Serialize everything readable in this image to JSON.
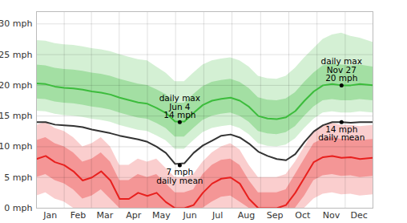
{
  "chart_data": {
    "type": "line",
    "x": [
      0,
      10,
      20,
      30,
      40,
      50,
      60,
      70,
      80,
      90,
      100,
      110,
      120,
      130,
      140,
      150,
      160,
      170,
      180,
      190,
      200,
      210,
      220,
      230,
      240,
      250,
      260,
      270,
      280,
      290,
      300,
      310,
      320,
      330,
      340,
      350,
      364
    ],
    "xlim": [
      0,
      364
    ],
    "xticks": [
      {
        "value": 15,
        "label": "Jan"
      },
      {
        "value": 45,
        "label": "Feb"
      },
      {
        "value": 74,
        "label": "Mar"
      },
      {
        "value": 105,
        "label": "Apr"
      },
      {
        "value": 135,
        "label": "May"
      },
      {
        "value": 166,
        "label": "Jun"
      },
      {
        "value": 196,
        "label": "Jul"
      },
      {
        "value": 227,
        "label": "Aug"
      },
      {
        "value": 258,
        "label": "Sep"
      },
      {
        "value": 288,
        "label": "Oct"
      },
      {
        "value": 319,
        "label": "Nov"
      },
      {
        "value": 349,
        "label": "Dec"
      }
    ],
    "ylim": [
      0,
      32
    ],
    "yticks": [
      {
        "value": 0,
        "label": "0 mph"
      },
      {
        "value": 5,
        "label": "5 mph"
      },
      {
        "value": 10,
        "label": "10 mph"
      },
      {
        "value": 15,
        "label": "15 mph"
      },
      {
        "value": 20,
        "label": "20 mph"
      },
      {
        "value": 25,
        "label": "25 mph"
      },
      {
        "value": 30,
        "label": "30 mph"
      }
    ],
    "grid": true,
    "series": [
      {
        "name": "daily max",
        "color": "#3cbc3c",
        "values": [
          20.3,
          20.2,
          19.8,
          19.6,
          19.5,
          19.3,
          19.0,
          18.8,
          18.5,
          18.0,
          17.6,
          17.2,
          17.0,
          16.3,
          15.5,
          14.1,
          14.1,
          15.5,
          16.8,
          17.5,
          17.8,
          18.0,
          17.5,
          16.5,
          15.0,
          14.6,
          14.5,
          14.8,
          15.8,
          17.5,
          19.0,
          20.0,
          20.2,
          20.0,
          20.0,
          20.2,
          20.0
        ],
        "p90": [
          27.3,
          27.2,
          26.8,
          26.6,
          26.5,
          26.3,
          26.0,
          25.8,
          25.5,
          25.0,
          24.6,
          24.2,
          24.0,
          23.0,
          22.0,
          20.6,
          20.6,
          22.0,
          23.3,
          24.0,
          24.3,
          24.5,
          24.0,
          23.0,
          21.5,
          21.1,
          21.0,
          21.5,
          22.8,
          24.5,
          26.0,
          27.5,
          28.2,
          28.5,
          28.0,
          27.7,
          27.0
        ],
        "p75": [
          23.3,
          23.2,
          22.8,
          22.6,
          22.5,
          22.3,
          22.0,
          21.8,
          21.5,
          21.0,
          20.6,
          20.2,
          20.0,
          19.3,
          18.5,
          17.1,
          17.1,
          18.5,
          19.8,
          20.5,
          20.8,
          21.0,
          20.5,
          19.5,
          18.0,
          17.6,
          17.5,
          17.8,
          18.8,
          20.5,
          22.0,
          23.2,
          23.5,
          23.3,
          23.2,
          23.3,
          23.0
        ],
        "p25": [
          17.8,
          17.7,
          17.3,
          17.1,
          17.0,
          16.8,
          16.5,
          16.3,
          16.0,
          15.5,
          15.1,
          14.7,
          14.5,
          13.8,
          13.0,
          11.6,
          11.6,
          13.0,
          14.3,
          15.0,
          15.3,
          15.5,
          15.0,
          14.0,
          12.5,
          12.1,
          12.0,
          12.3,
          13.3,
          15.0,
          16.5,
          17.5,
          17.7,
          17.5,
          17.5,
          17.7,
          17.5
        ],
        "p10": [
          15.8,
          15.7,
          15.3,
          15.1,
          15.0,
          14.8,
          14.5,
          14.3,
          14.0,
          13.5,
          13.1,
          12.7,
          12.5,
          11.8,
          11.0,
          9.6,
          9.6,
          11.0,
          12.3,
          13.0,
          13.3,
          13.5,
          13.0,
          12.0,
          10.5,
          10.1,
          10.0,
          10.3,
          11.3,
          13.0,
          14.5,
          15.5,
          15.7,
          15.5,
          15.5,
          15.7,
          15.5
        ]
      },
      {
        "name": "daily mean",
        "color": "#333333",
        "values": [
          14.0,
          14.0,
          13.6,
          13.5,
          13.4,
          13.2,
          12.8,
          12.5,
          12.2,
          11.8,
          11.5,
          11.2,
          10.8,
          10.0,
          9.0,
          7.2,
          7.3,
          9.0,
          10.2,
          11.0,
          11.8,
          12.0,
          11.5,
          10.5,
          9.2,
          8.5,
          8.0,
          7.8,
          8.8,
          10.8,
          12.5,
          13.5,
          14.0,
          14.0,
          13.9,
          14.0,
          14.0
        ]
      },
      {
        "color": "#e8201e",
        "values": [
          8.0,
          8.5,
          7.5,
          7.0,
          6.0,
          4.5,
          5.0,
          6.0,
          4.5,
          1.5,
          1.5,
          2.5,
          2.0,
          2.5,
          1.0,
          0.0,
          0.0,
          0.5,
          2.5,
          4.0,
          4.8,
          5.0,
          4.0,
          1.5,
          0.0,
          0.0,
          0.0,
          0.5,
          2.5,
          5.0,
          7.5,
          8.3,
          8.5,
          8.2,
          8.3,
          8.0,
          8.2
        ],
        "p90": [
          13.5,
          14.0,
          13.0,
          12.5,
          11.5,
          10.0,
          10.5,
          11.5,
          10.0,
          7.0,
          7.0,
          8.0,
          7.5,
          8.0,
          6.5,
          5.0,
          5.0,
          5.5,
          7.5,
          9.0,
          10.0,
          10.5,
          9.5,
          7.0,
          5.0,
          5.0,
          5.0,
          5.5,
          7.5,
          10.0,
          12.5,
          13.5,
          13.8,
          13.5,
          13.5,
          13.3,
          13.5
        ],
        "p75": [
          11.0,
          11.5,
          10.5,
          10.0,
          9.0,
          7.5,
          8.0,
          9.0,
          7.5,
          4.5,
          4.5,
          5.5,
          5.0,
          5.5,
          4.0,
          2.5,
          2.5,
          3.0,
          5.5,
          7.0,
          7.8,
          8.0,
          7.0,
          4.5,
          2.5,
          2.5,
          2.5,
          3.0,
          5.5,
          8.0,
          10.5,
          11.3,
          11.5,
          11.2,
          11.3,
          11.0,
          11.2
        ],
        "p25": [
          5.0,
          5.5,
          4.5,
          4.0,
          3.0,
          1.5,
          2.0,
          3.0,
          1.5,
          0,
          0,
          0,
          0,
          0,
          0,
          0,
          0,
          0,
          0,
          1.0,
          1.8,
          2.0,
          1.0,
          0,
          0,
          0,
          0,
          0,
          0,
          2.0,
          4.5,
          5.3,
          5.5,
          5.2,
          5.3,
          5.0,
          5.2
        ],
        "p10": [
          2.0,
          2.5,
          1.5,
          1.0,
          0,
          0,
          0,
          0,
          0,
          0,
          0,
          0,
          0,
          0,
          0,
          0,
          0,
          0,
          0,
          0,
          0,
          0,
          0,
          0,
          0,
          0,
          0,
          0,
          0,
          0,
          1.5,
          2.3,
          2.5,
          2.2,
          2.3,
          2.0,
          2.2
        ]
      }
    ],
    "annotations": [
      {
        "series": "daily max",
        "x": 155,
        "y": 14,
        "text": [
          "daily max",
          "Jun 4",
          "14 mph"
        ]
      },
      {
        "series": "daily max",
        "x": 330,
        "y": 20,
        "text": [
          "daily max",
          "Nov 27",
          "20 mph"
        ]
      },
      {
        "series": "daily mean",
        "x": 155,
        "y": 7,
        "text": [
          "7 mph",
          "daily mean"
        ]
      },
      {
        "series": "daily mean",
        "x": 330,
        "y": 14,
        "text": [
          "14 mph",
          "daily mean"
        ]
      }
    ]
  }
}
